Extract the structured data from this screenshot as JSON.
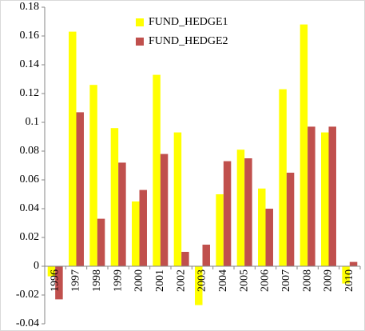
{
  "chart_data": {
    "type": "bar",
    "categories": [
      "1996",
      "1997",
      "1998",
      "1999",
      "2000",
      "2001",
      "2002",
      "2003",
      "2004",
      "2005",
      "2006",
      "2007",
      "2008",
      "2009",
      "2010"
    ],
    "series": [
      {
        "name": "FUND_HEDGE1",
        "color": "#ffff00",
        "values": [
          -0.007,
          0.163,
          0.126,
          0.096,
          0.045,
          0.133,
          0.093,
          -0.027,
          0.05,
          0.081,
          0.054,
          0.123,
          0.168,
          0.093,
          -0.012
        ]
      },
      {
        "name": "FUND_HEDGE2",
        "color": "#c0504d",
        "values": [
          -0.023,
          0.107,
          0.033,
          0.072,
          0.053,
          0.078,
          0.01,
          0.015,
          0.073,
          0.075,
          0.04,
          0.065,
          0.097,
          0.097,
          0.003
        ]
      }
    ],
    "ylim": [
      -0.04,
      0.18
    ],
    "yticks": [
      -0.04,
      -0.02,
      0,
      0.02,
      0.04,
      0.06,
      0.08,
      0.1,
      0.12,
      0.14,
      0.16,
      0.18
    ],
    "grid": false,
    "legend": "top"
  }
}
